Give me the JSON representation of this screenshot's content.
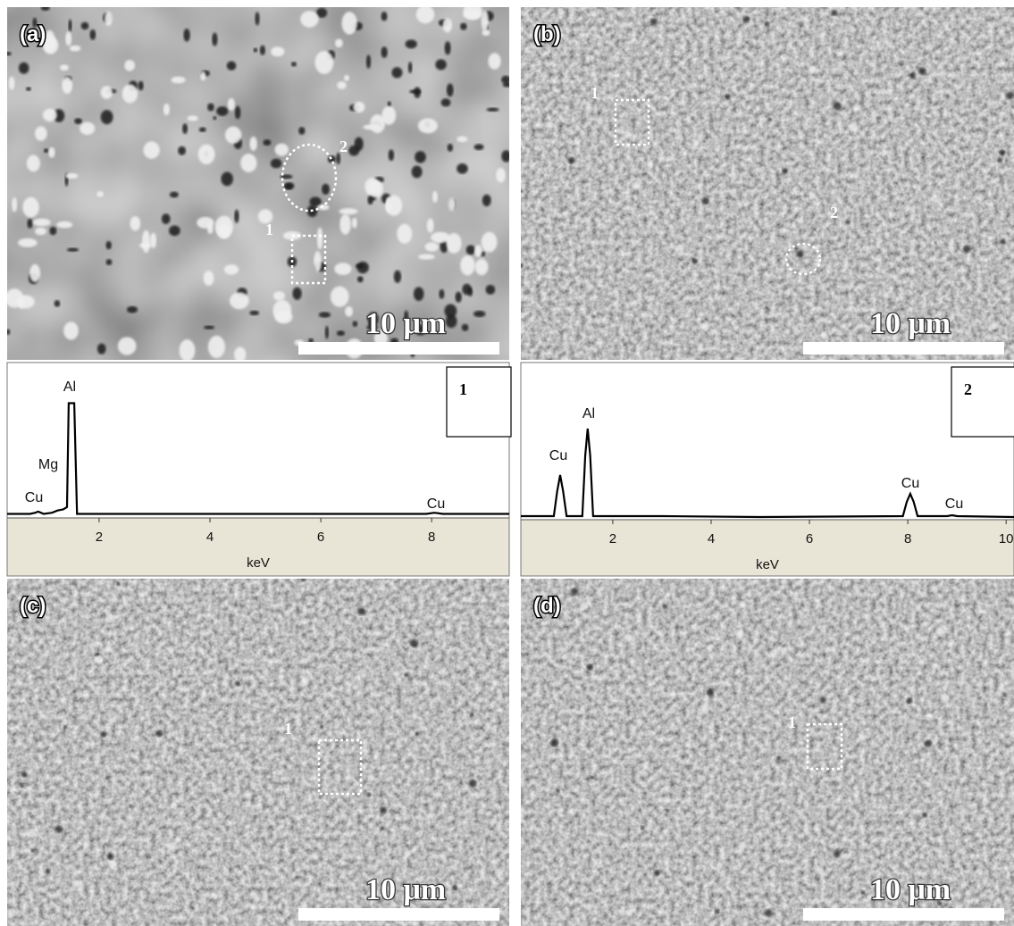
{
  "panels": [
    {
      "label": "(a)",
      "scale_bar": "10 μm",
      "markers": [
        "2",
        "1"
      ]
    },
    {
      "label": "(b)",
      "scale_bar": "10 μm",
      "markers": [
        "1",
        "2"
      ]
    },
    {
      "label": "(c)",
      "scale_bar": "10 μm",
      "markers": [
        "1"
      ]
    },
    {
      "label": "(d)",
      "scale_bar": "10 μm",
      "markers": [
        "1"
      ]
    }
  ],
  "chart_data": [
    {
      "type": "line",
      "box_label": "1",
      "xlabel": "keV",
      "x": [
        0.34,
        0.75,
        0.85,
        0.9,
        0.95,
        1.0,
        1.15,
        1.25,
        1.35,
        1.42,
        1.45,
        1.55,
        1.6,
        3.0,
        5.0,
        7.9,
        8.05,
        8.2,
        9.4
      ],
      "values": [
        2,
        2,
        3,
        4,
        3,
        2,
        3,
        5,
        6,
        8,
        100,
        100,
        2,
        2,
        2,
        2,
        3,
        2,
        2
      ],
      "color": "#000000",
      "xlim": [
        0.34,
        9.4
      ],
      "ylim": [
        0,
        136
      ],
      "xticks": [
        2,
        4,
        6,
        8
      ],
      "peak_labels": [
        "Al",
        "Mg",
        "Cu",
        "Cu"
      ]
    },
    {
      "type": "line",
      "box_label": "2",
      "xlabel": "keV",
      "x": [
        0.13,
        0.8,
        0.87,
        0.93,
        0.99,
        1.06,
        1.38,
        1.44,
        1.49,
        1.54,
        1.6,
        3.0,
        5.0,
        7.9,
        7.98,
        8.05,
        8.12,
        8.2,
        8.8,
        8.9,
        9.0,
        10.16
      ],
      "values": [
        2,
        2,
        30,
        48,
        30,
        2,
        2,
        70,
        100,
        70,
        2,
        2,
        1,
        2,
        18,
        27,
        18,
        2,
        2,
        3,
        2,
        1
      ],
      "color": "#000000",
      "xlim": [
        0.13,
        10.16
      ],
      "ylim": [
        0,
        174
      ],
      "xticks": [
        2,
        4,
        6,
        8,
        10
      ],
      "peak_labels": [
        "Al",
        "Cu",
        "Cu",
        "Cu"
      ]
    }
  ]
}
